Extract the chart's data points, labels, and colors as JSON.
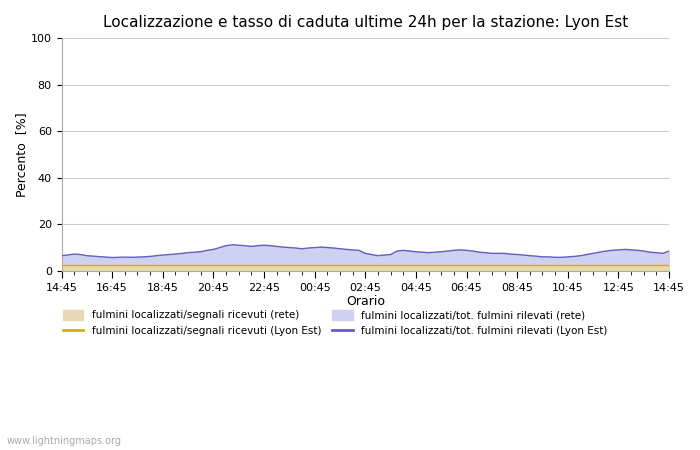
{
  "title": "Localizzazione e tasso di caduta ultime 24h per la stazione: Lyon Est",
  "xlabel": "Orario",
  "ylabel": "Percento  [%]",
  "ylim": [
    0,
    100
  ],
  "yticks": [
    0,
    20,
    40,
    60,
    80,
    100
  ],
  "xtick_labels": [
    "14:45",
    "16:45",
    "18:45",
    "20:45",
    "22:45",
    "00:45",
    "02:45",
    "04:45",
    "06:45",
    "08:45",
    "10:45",
    "12:45",
    "14:45"
  ],
  "background_color": "#ffffff",
  "plot_bg_color": "#ffffff",
  "grid_color": "#cccccc",
  "fill_rete_color": "#e8d8b8",
  "fill_lyon_color": "#d0d0f0",
  "line_rete_color": "#d4b000",
  "line_lyon_color": "#6060c0",
  "legend_labels": [
    "fulmini localizzati/segnali ricevuti (rete)",
    "fulmini localizzati/segnali ricevuti (Lyon Est)",
    "fulmini localizzati/tot. fulmini rilevati (rete)",
    "fulmini localizzati/tot. fulmini rilevati (Lyon Est)"
  ],
  "watermark": "www.lightningmaps.org",
  "n_points": 97,
  "rete_fill_data": [
    2.5,
    2.5,
    2.5,
    2.5,
    2.5,
    2.5,
    2.5,
    2.5,
    2.5,
    2.5,
    2.5,
    2.5,
    2.5,
    2.5,
    2.5,
    2.5,
    2.5,
    2.5,
    2.5,
    2.5,
    2.5,
    2.5,
    2.5,
    2.5,
    2.5,
    2.5,
    2.5,
    2.5,
    2.5,
    2.5,
    2.5,
    2.5,
    2.5,
    2.5,
    2.5,
    2.5,
    2.5,
    2.5,
    2.5,
    2.5,
    2.5,
    2.5,
    2.5,
    2.5,
    2.5,
    2.5,
    2.5,
    2.5,
    2.5,
    2.5,
    2.5,
    2.5,
    2.5,
    2.5,
    2.5,
    2.5,
    2.5,
    2.5,
    2.5,
    2.5,
    2.5,
    2.5,
    2.5,
    2.5,
    2.5,
    2.5,
    2.5,
    2.5,
    2.5,
    2.5,
    2.5,
    2.5,
    2.5,
    2.5,
    2.5,
    2.5,
    2.5,
    2.5,
    2.5,
    2.5,
    2.5,
    2.5,
    2.5,
    2.5,
    2.5,
    2.5,
    2.5,
    2.5,
    2.5,
    2.5,
    2.5,
    2.5,
    2.5,
    2.5,
    2.5,
    2.5,
    2.5
  ],
  "lyon_fill_data": [
    6.5,
    6.8,
    7.2,
    7.0,
    6.5,
    6.3,
    6.1,
    5.9,
    5.7,
    5.8,
    5.9,
    5.8,
    5.9,
    6.0,
    6.2,
    6.5,
    6.8,
    7.0,
    7.2,
    7.5,
    7.8,
    8.0,
    8.2,
    8.8,
    9.2,
    10.0,
    10.8,
    11.2,
    11.0,
    10.8,
    10.5,
    10.8,
    11.0,
    10.8,
    10.5,
    10.2,
    10.0,
    9.8,
    9.5,
    9.8,
    10.0,
    10.2,
    10.0,
    9.8,
    9.5,
    9.2,
    9.0,
    8.8,
    7.5,
    7.0,
    6.5,
    6.8,
    7.0,
    8.5,
    8.8,
    8.5,
    8.2,
    8.0,
    7.8,
    8.0,
    8.2,
    8.5,
    8.8,
    9.0,
    8.8,
    8.5,
    8.0,
    7.8,
    7.5,
    7.5,
    7.5,
    7.2,
    7.0,
    6.8,
    6.5,
    6.3,
    6.0,
    6.0,
    5.8,
    5.8,
    6.0,
    6.2,
    6.5,
    7.0,
    7.5,
    8.0,
    8.5,
    8.8,
    9.0,
    9.2,
    9.0,
    8.8,
    8.5,
    8.0,
    7.8,
    7.5,
    8.5
  ]
}
